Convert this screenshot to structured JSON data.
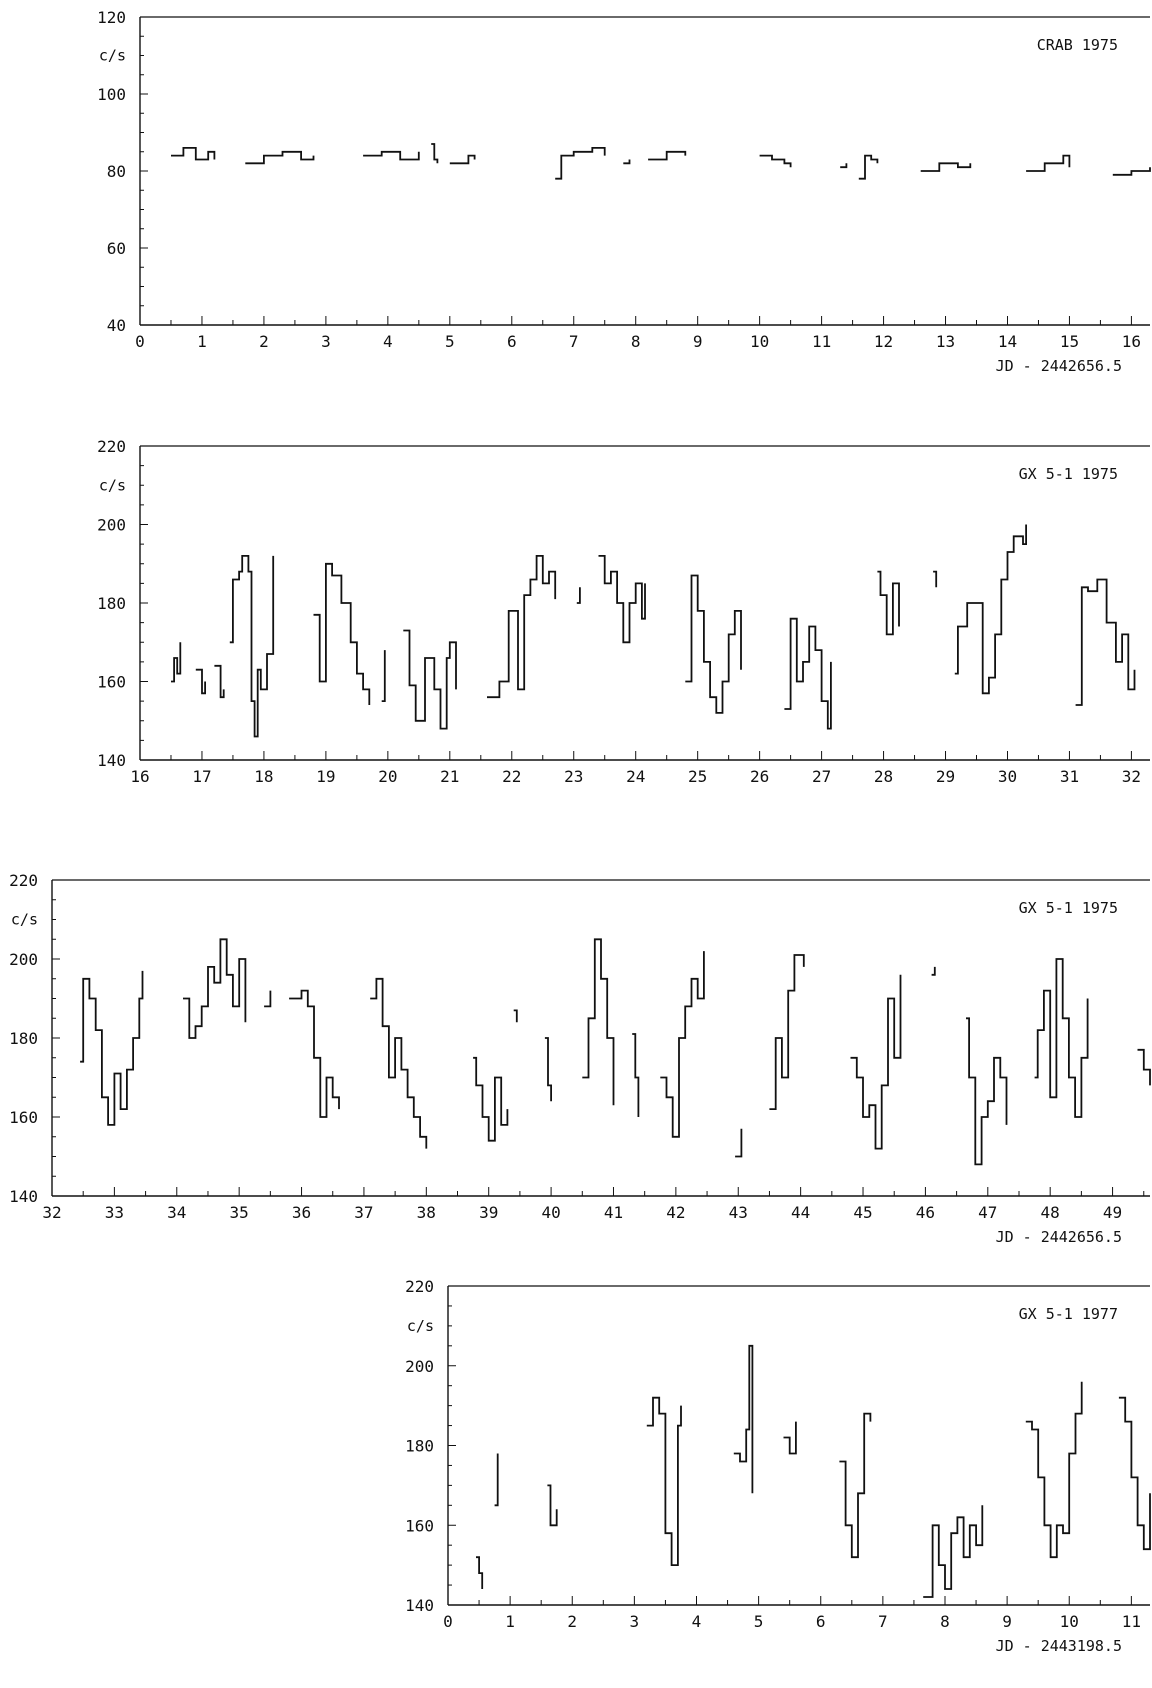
{
  "chart_data": [
    {
      "type": "line",
      "title": "CRAB  1975",
      "ylabel": "c/s",
      "xlabel": "JD - 2442656.5",
      "xlim": [
        0,
        16.3
      ],
      "ylim": [
        40,
        120
      ],
      "yticks": [
        40,
        60,
        80,
        100,
        120
      ],
      "xticks": [
        0,
        1,
        2,
        3,
        4,
        5,
        6,
        7,
        8,
        9,
        10,
        11,
        12,
        13,
        14,
        15,
        16
      ],
      "segments": [
        {
          "x": [
            0.5,
            0.7,
            0.9,
            1.1,
            1.2
          ],
          "y": [
            84,
            86,
            83,
            85,
            83
          ]
        },
        {
          "x": [
            1.7,
            2.0,
            2.3,
            2.6,
            2.8
          ],
          "y": [
            82,
            84,
            85,
            83,
            84
          ]
        },
        {
          "x": [
            3.6,
            3.9,
            4.2,
            4.5
          ],
          "y": [
            84,
            85,
            83,
            85
          ]
        },
        {
          "x": [
            4.7,
            4.75,
            4.8
          ],
          "y": [
            87,
            83,
            82
          ]
        },
        {
          "x": [
            5.0,
            5.3,
            5.4
          ],
          "y": [
            82,
            84,
            83
          ]
        },
        {
          "x": [
            6.7,
            6.8,
            7.0,
            7.3,
            7.5
          ],
          "y": [
            78,
            84,
            85,
            86,
            84
          ]
        },
        {
          "x": [
            7.8,
            7.9
          ],
          "y": [
            82,
            83
          ]
        },
        {
          "x": [
            8.2,
            8.5,
            8.8
          ],
          "y": [
            83,
            85,
            84
          ]
        },
        {
          "x": [
            10.0,
            10.2,
            10.4,
            10.5
          ],
          "y": [
            84,
            83,
            82,
            81
          ]
        },
        {
          "x": [
            11.3,
            11.4
          ],
          "y": [
            81,
            82
          ]
        },
        {
          "x": [
            11.6,
            11.7,
            11.8,
            11.9
          ],
          "y": [
            78,
            84,
            83,
            82
          ]
        },
        {
          "x": [
            12.6,
            12.9,
            13.2,
            13.4
          ],
          "y": [
            80,
            82,
            81,
            82
          ]
        },
        {
          "x": [
            14.3,
            14.6,
            14.9,
            15.0
          ],
          "y": [
            80,
            82,
            84,
            81
          ]
        },
        {
          "x": [
            15.7,
            16.0,
            16.3
          ],
          "y": [
            79,
            80,
            81
          ]
        }
      ]
    },
    {
      "type": "line",
      "title": "GX 5-1  1975",
      "ylabel": "c/s",
      "xlabel": "",
      "xlim": [
        16,
        32.3
      ],
      "ylim": [
        140,
        220
      ],
      "yticks": [
        140,
        160,
        180,
        200,
        220
      ],
      "xticks": [
        16,
        17,
        18,
        19,
        20,
        21,
        22,
        23,
        24,
        25,
        26,
        27,
        28,
        29,
        30,
        31,
        32
      ],
      "segments": [
        {
          "x": [
            16.5,
            16.55,
            16.6,
            16.65
          ],
          "y": [
            160,
            166,
            162,
            170
          ]
        },
        {
          "x": [
            16.9,
            17.0,
            17.05
          ],
          "y": [
            163,
            157,
            160
          ]
        },
        {
          "x": [
            17.2,
            17.3,
            17.35
          ],
          "y": [
            164,
            156,
            158
          ]
        },
        {
          "x": [
            17.45,
            17.5,
            17.6,
            17.65,
            17.75,
            17.8,
            17.85,
            17.9,
            17.95,
            18.05,
            18.15
          ],
          "y": [
            170,
            186,
            188,
            192,
            188,
            155,
            146,
            163,
            158,
            167,
            192
          ]
        },
        {
          "x": [
            18.8,
            18.9,
            19.0,
            19.1,
            19.25,
            19.4,
            19.5,
            19.6,
            19.7
          ],
          "y": [
            177,
            160,
            190,
            187,
            180,
            170,
            162,
            158,
            154
          ]
        },
        {
          "x": [
            19.9,
            19.95
          ],
          "y": [
            155,
            168
          ]
        },
        {
          "x": [
            20.25,
            20.35,
            20.45,
            20.6,
            20.75,
            20.85,
            20.95,
            21.0,
            21.1
          ],
          "y": [
            173,
            159,
            150,
            166,
            158,
            148,
            166,
            170,
            158
          ]
        },
        {
          "x": [
            21.6,
            21.8,
            21.95,
            22.1,
            22.2,
            22.3,
            22.4,
            22.5,
            22.6,
            22.7
          ],
          "y": [
            156,
            160,
            178,
            158,
            182,
            186,
            192,
            185,
            188,
            181
          ]
        },
        {
          "x": [
            23.05,
            23.1
          ],
          "y": [
            180,
            184
          ]
        },
        {
          "x": [
            23.4,
            23.5,
            23.6,
            23.7,
            23.8,
            23.9,
            24.0,
            24.1,
            24.15
          ],
          "y": [
            192,
            185,
            188,
            180,
            170,
            180,
            185,
            176,
            185
          ]
        },
        {
          "x": [
            24.8,
            24.9,
            25.0,
            25.1,
            25.2,
            25.3,
            25.4,
            25.5,
            25.6,
            25.7
          ],
          "y": [
            160,
            187,
            178,
            165,
            156,
            152,
            160,
            172,
            178,
            163
          ]
        },
        {
          "x": [
            26.4,
            26.5,
            26.6,
            26.7,
            26.8,
            26.9,
            27.0,
            27.1,
            27.15
          ],
          "y": [
            153,
            176,
            160,
            165,
            174,
            168,
            155,
            148,
            165
          ]
        },
        {
          "x": [
            27.9,
            27.95,
            28.05,
            28.15,
            28.25
          ],
          "y": [
            188,
            182,
            172,
            185,
            174
          ]
        },
        {
          "x": [
            28.8,
            28.85
          ],
          "y": [
            188,
            184
          ]
        },
        {
          "x": [
            29.15,
            29.2,
            29.35,
            29.6,
            29.7,
            29.8,
            29.9,
            30.0,
            30.1,
            30.25,
            30.3
          ],
          "y": [
            162,
            174,
            180,
            157,
            161,
            172,
            186,
            193,
            197,
            195,
            200
          ]
        },
        {
          "x": [
            31.1,
            31.2,
            31.3,
            31.45,
            31.6,
            31.75,
            31.85,
            31.95,
            32.05
          ],
          "y": [
            154,
            184,
            183,
            186,
            175,
            165,
            172,
            158,
            163
          ]
        }
      ]
    },
    {
      "type": "line",
      "title": "GX 5-1  1975",
      "ylabel": "c/s",
      "xlabel": "JD - 2442656.5",
      "xlim": [
        32,
        49.6
      ],
      "ylim": [
        140,
        220
      ],
      "yticks": [
        140,
        160,
        180,
        200,
        220
      ],
      "xticks": [
        32,
        33,
        34,
        35,
        36,
        37,
        38,
        39,
        40,
        41,
        42,
        43,
        44,
        45,
        46,
        47,
        48,
        49
      ],
      "segments": [
        {
          "x": [
            32.45,
            32.5,
            32.6,
            32.7,
            32.8,
            32.9,
            33.0,
            33.1,
            33.2,
            33.3,
            33.4,
            33.45
          ],
          "y": [
            174,
            195,
            190,
            182,
            165,
            158,
            171,
            162,
            172,
            180,
            190,
            197
          ]
        },
        {
          "x": [
            34.1,
            34.2,
            34.3,
            34.4,
            34.5,
            34.6,
            34.7,
            34.8,
            34.9,
            35.0,
            35.1
          ],
          "y": [
            190,
            180,
            183,
            188,
            198,
            194,
            205,
            196,
            188,
            200,
            184
          ]
        },
        {
          "x": [
            35.4,
            35.5
          ],
          "y": [
            188,
            192
          ]
        },
        {
          "x": [
            35.8,
            36.0,
            36.1,
            36.2,
            36.3,
            36.4,
            36.5,
            36.6
          ],
          "y": [
            190,
            192,
            188,
            175,
            160,
            170,
            165,
            162
          ]
        },
        {
          "x": [
            37.1,
            37.2,
            37.3,
            37.4,
            37.5,
            37.6,
            37.7,
            37.8,
            37.9,
            38.0
          ],
          "y": [
            190,
            195,
            183,
            170,
            180,
            172,
            165,
            160,
            155,
            152
          ]
        },
        {
          "x": [
            38.75,
            38.8,
            38.9,
            39.0,
            39.1,
            39.2,
            39.3
          ],
          "y": [
            175,
            168,
            160,
            154,
            170,
            158,
            162
          ]
        },
        {
          "x": [
            39.4,
            39.45
          ],
          "y": [
            187,
            184
          ]
        },
        {
          "x": [
            39.9,
            39.95,
            40.0
          ],
          "y": [
            180,
            168,
            164
          ]
        },
        {
          "x": [
            40.5,
            40.6,
            40.7,
            40.8,
            40.9,
            41.0
          ],
          "y": [
            170,
            185,
            205,
            195,
            180,
            163
          ]
        },
        {
          "x": [
            41.3,
            41.35,
            41.4
          ],
          "y": [
            181,
            170,
            160
          ]
        },
        {
          "x": [
            41.75,
            41.85,
            41.95,
            42.05,
            42.15,
            42.25,
            42.35,
            42.45
          ],
          "y": [
            170,
            165,
            155,
            180,
            188,
            195,
            190,
            202
          ]
        },
        {
          "x": [
            42.95,
            43.05
          ],
          "y": [
            150,
            157
          ]
        },
        {
          "x": [
            43.5,
            43.6,
            43.7,
            43.8,
            43.9,
            44.05
          ],
          "y": [
            162,
            180,
            170,
            192,
            201,
            198
          ]
        },
        {
          "x": [
            44.8,
            44.9,
            45.0,
            45.1,
            45.2,
            45.3,
            45.4,
            45.5,
            45.6
          ],
          "y": [
            175,
            170,
            160,
            163,
            152,
            168,
            190,
            175,
            196
          ]
        },
        {
          "x": [
            46.1,
            46.15
          ],
          "y": [
            196,
            198
          ]
        },
        {
          "x": [
            46.65,
            46.7,
            46.8,
            46.9,
            47.0,
            47.1,
            47.2,
            47.3
          ],
          "y": [
            185,
            170,
            148,
            160,
            164,
            175,
            170,
            158
          ]
        },
        {
          "x": [
            47.75,
            47.8,
            47.9,
            48.0,
            48.1,
            48.2,
            48.3,
            48.4,
            48.5,
            48.6
          ],
          "y": [
            170,
            182,
            192,
            165,
            200,
            185,
            170,
            160,
            175,
            190
          ]
        },
        {
          "x": [
            49.4,
            49.5,
            49.6
          ],
          "y": [
            177,
            172,
            168
          ]
        }
      ]
    },
    {
      "type": "line",
      "title": "GX 5-1  1977",
      "ylabel": "c/s",
      "xlabel": "JD - 2443198.5",
      "xlim": [
        0,
        11.3
      ],
      "ylim": [
        140,
        220
      ],
      "yticks": [
        140,
        160,
        180,
        200,
        220
      ],
      "xticks": [
        0,
        1,
        2,
        3,
        4,
        5,
        6,
        7,
        8,
        9,
        10,
        11
      ],
      "segments": [
        {
          "x": [
            0.45,
            0.5,
            0.55
          ],
          "y": [
            152,
            148,
            144
          ]
        },
        {
          "x": [
            0.75,
            0.8
          ],
          "y": [
            165,
            178
          ]
        },
        {
          "x": [
            1.6,
            1.65,
            1.75
          ],
          "y": [
            170,
            160,
            164
          ]
        },
        {
          "x": [
            3.2,
            3.3,
            3.4,
            3.5,
            3.6,
            3.7,
            3.75
          ],
          "y": [
            185,
            192,
            188,
            158,
            150,
            185,
            190
          ]
        },
        {
          "x": [
            4.6,
            4.7,
            4.8,
            4.85,
            4.9
          ],
          "y": [
            178,
            176,
            184,
            205,
            168
          ]
        },
        {
          "x": [
            5.4,
            5.5,
            5.6
          ],
          "y": [
            182,
            178,
            186
          ]
        },
        {
          "x": [
            6.3,
            6.4,
            6.5,
            6.6,
            6.7,
            6.8
          ],
          "y": [
            176,
            160,
            152,
            168,
            188,
            186
          ]
        },
        {
          "x": [
            7.65,
            7.8,
            7.9,
            8.0,
            8.1,
            8.2,
            8.3,
            8.4,
            8.5,
            8.6
          ],
          "y": [
            142,
            160,
            150,
            144,
            158,
            162,
            152,
            160,
            155,
            165
          ]
        },
        {
          "x": [
            9.3,
            9.4,
            9.5,
            9.6,
            9.7,
            9.8,
            9.9,
            10.0,
            10.1,
            10.2
          ],
          "y": [
            186,
            184,
            172,
            160,
            152,
            160,
            158,
            178,
            188,
            196
          ]
        },
        {
          "x": [
            10.8,
            10.9,
            11.0,
            11.1,
            11.2,
            11.3
          ],
          "y": [
            192,
            186,
            172,
            160,
            154,
            168
          ]
        }
      ]
    }
  ]
}
